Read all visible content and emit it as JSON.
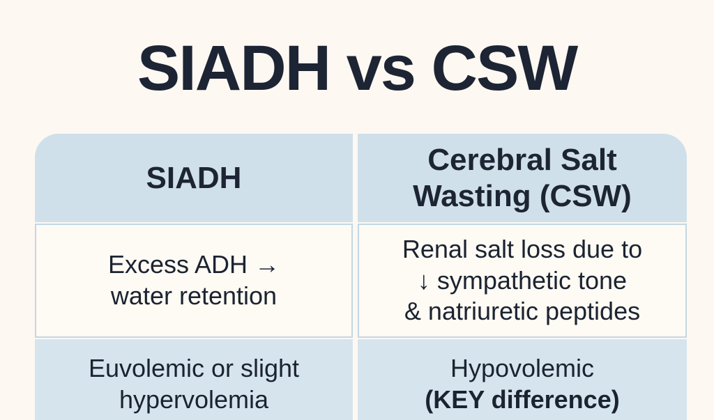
{
  "title": "SIADH vs CSW",
  "colors": {
    "page_background": "#fdf8f2",
    "header_blue": "#cfe0ea",
    "row_alt_blue": "#d6e4ee",
    "cream_cell": "#fefaf4",
    "cell_border_blue": "#c3d8e5",
    "title_text": "#1d2433",
    "body_text": "#1b2330"
  },
  "table": {
    "columns": [
      {
        "header_lines": {
          "0": "SIADH"
        }
      },
      {
        "header_lines": {
          "0": "Cerebral Salt",
          "1": "Wasting (CSW)"
        }
      }
    ],
    "rows": [
      {
        "siadh_lines": {
          "0": "Excess ADH →",
          "1": "water retention"
        },
        "csw_lines": {
          "0": "Renal salt loss due to",
          "1": "↓ sympathetic tone",
          "2": "& natriuretic peptides"
        }
      },
      {
        "siadh_lines": {
          "0": "Euvolemic or slight",
          "1": "hypervolemia"
        },
        "csw_lines": {
          "0": "Hypovolemic",
          "1": "(KEY difference)"
        }
      }
    ]
  }
}
